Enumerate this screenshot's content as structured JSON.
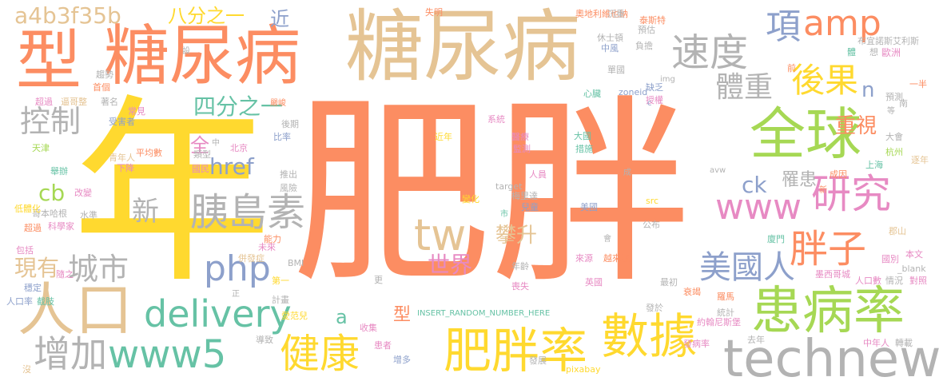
{
  "colors": {
    "orange": "#fc8d62",
    "tan": "#e5c494",
    "yellow": "#ffd92f",
    "green": "#a6d854",
    "teal": "#66c2a5",
    "blue": "#8da0cb",
    "pink": "#e78ac3",
    "gray": "#b3b3b3"
  },
  "words": [
    {
      "text": "肥胖",
      "color": "orange"
    },
    {
      "text": "年",
      "color": "yellow"
    },
    {
      "text": "糖尿病",
      "color": "tan"
    },
    {
      "text": "糖尿病",
      "color": "orange"
    },
    {
      "text": "型",
      "color": "orange"
    },
    {
      "text": "全球",
      "color": "green"
    },
    {
      "text": "患病率",
      "color": "green"
    },
    {
      "text": "technews",
      "color": "gray"
    },
    {
      "text": "肥胖率",
      "color": "yellow"
    },
    {
      "text": "數據",
      "color": "yellow"
    },
    {
      "text": "人口",
      "color": "tan"
    },
    {
      "text": "www5",
      "color": "teal"
    },
    {
      "text": "delivery",
      "color": "teal"
    },
    {
      "text": "健康",
      "color": "yellow"
    },
    {
      "text": "增加",
      "color": "gray"
    },
    {
      "text": "胰島素",
      "color": "gray"
    },
    {
      "text": "www",
      "color": "pink"
    },
    {
      "text": "研究",
      "color": "pink"
    },
    {
      "text": "胖子",
      "color": "orange"
    },
    {
      "text": "美國人",
      "color": "blue"
    },
    {
      "text": "tw",
      "color": "tan"
    },
    {
      "text": "php",
      "color": "blue"
    },
    {
      "text": "城市",
      "color": "gray"
    },
    {
      "text": "速度",
      "color": "gray"
    },
    {
      "text": "amp",
      "color": "orange"
    },
    {
      "text": "項",
      "color": "blue"
    },
    {
      "text": "後果",
      "color": "yellow"
    },
    {
      "text": "體重",
      "color": "gray"
    },
    {
      "text": "控制",
      "color": "gray"
    },
    {
      "text": "a4b3f35b",
      "color": "tan"
    },
    {
      "text": "八分之一",
      "color": "yellow"
    },
    {
      "text": "四分之一",
      "color": "teal"
    },
    {
      "text": "重視",
      "color": "orange"
    },
    {
      "text": "世界",
      "color": "pink"
    },
    {
      "text": "攀升",
      "color": "tan"
    },
    {
      "text": "href",
      "color": "blue"
    },
    {
      "text": "新",
      "color": "gray"
    },
    {
      "text": "現有",
      "color": "tan"
    },
    {
      "text": "cb",
      "color": "green"
    },
    {
      "text": "ck",
      "color": "blue"
    },
    {
      "text": "罹患",
      "color": "gray"
    },
    {
      "text": "n",
      "color": "blue"
    },
    {
      "text": "全",
      "color": "pink"
    },
    {
      "text": "近",
      "color": "blue"
    },
    {
      "text": "a",
      "color": "teal"
    },
    {
      "text": "型",
      "color": "orange"
    },
    {
      "text": "INSERT_RANDOM_NUMBER_HERE",
      "color": "teal"
    },
    {
      "text": "奧地利維也納",
      "color": "orange"
    },
    {
      "text": "沉重",
      "color": "gray"
    },
    {
      "text": "布宜諾斯艾利斯",
      "color": "gray"
    },
    {
      "text": "失明",
      "color": "orange"
    },
    {
      "text": "休士頓",
      "color": "gray"
    },
    {
      "text": "中風",
      "color": "blue"
    },
    {
      "text": "歐洲",
      "color": "pink"
    },
    {
      "text": "單國",
      "color": "gray"
    },
    {
      "text": "預測",
      "color": "gray"
    },
    {
      "text": "趨勢",
      "color": "gray"
    },
    {
      "text": "首個",
      "color": "orange"
    },
    {
      "text": "超過",
      "color": "pink"
    },
    {
      "text": "逼哥整",
      "color": "tan"
    },
    {
      "text": "著名",
      "color": "gray"
    },
    {
      "text": "嚴峻",
      "color": "orange"
    },
    {
      "text": "心臟",
      "color": "teal"
    },
    {
      "text": "缺乏",
      "color": "blue"
    },
    {
      "text": "zoneid",
      "color": "blue"
    },
    {
      "text": "授權",
      "color": "pink"
    },
    {
      "text": "一半",
      "color": "orange"
    },
    {
      "text": "常見",
      "color": "pink"
    },
    {
      "text": "受害者",
      "color": "blue"
    },
    {
      "text": "天津",
      "color": "green"
    },
    {
      "text": "哥本哈根",
      "color": "gray"
    },
    {
      "text": "水準",
      "color": "gray"
    },
    {
      "text": "科學家",
      "color": "pink"
    },
    {
      "text": "超過",
      "color": "orange"
    },
    {
      "text": "低體化",
      "color": "yellow"
    },
    {
      "text": "改變",
      "color": "pink"
    },
    {
      "text": "舉辦",
      "color": "teal"
    },
    {
      "text": "青年人",
      "color": "tan"
    },
    {
      "text": "平均數",
      "color": "orange"
    },
    {
      "text": "類型",
      "color": "gray"
    },
    {
      "text": "北京",
      "color": "pink"
    },
    {
      "text": "國民",
      "color": "pink"
    },
    {
      "text": "推出",
      "color": "gray"
    },
    {
      "text": "風險",
      "color": "gray"
    },
    {
      "text": "後期",
      "color": "gray"
    },
    {
      "text": "比率",
      "color": "blue"
    },
    {
      "text": "近年",
      "color": "yellow"
    },
    {
      "text": "系統",
      "color": "pink"
    },
    {
      "text": "醫療",
      "color": "pink"
    },
    {
      "text": "監測",
      "color": "pink"
    },
    {
      "text": "大國",
      "color": "teal"
    },
    {
      "text": "措施",
      "color": "teal"
    },
    {
      "text": "大會",
      "color": "gray"
    },
    {
      "text": "杭州",
      "color": "green"
    },
    {
      "text": "上海",
      "color": "teal"
    },
    {
      "text": "成因",
      "color": "orange"
    },
    {
      "text": "target",
      "color": "gray"
    },
    {
      "text": "人員",
      "color": "pink"
    },
    {
      "text": "梅里達",
      "color": "gray"
    },
    {
      "text": "兒童",
      "color": "blue"
    },
    {
      "text": "變化",
      "color": "yellow"
    },
    {
      "text": "美國",
      "color": "blue"
    },
    {
      "text": "公布",
      "color": "gray"
    },
    {
      "text": "src",
      "color": "yellow"
    },
    {
      "text": "廈門",
      "color": "teal"
    },
    {
      "text": "郡山",
      "color": "tan"
    },
    {
      "text": "包括",
      "color": "pink"
    },
    {
      "text": "穩定",
      "color": "blue"
    },
    {
      "text": "人口率",
      "color": "blue"
    },
    {
      "text": "截肢",
      "color": "teal"
    },
    {
      "text": "隨之",
      "color": "pink"
    },
    {
      "text": "第一",
      "color": "yellow"
    },
    {
      "text": "更",
      "color": "gray"
    },
    {
      "text": "喪失",
      "color": "pink"
    },
    {
      "text": "年齡",
      "color": "gray"
    },
    {
      "text": "來源",
      "color": "pink"
    },
    {
      "text": "越來越",
      "color": "orange"
    },
    {
      "text": "墨西哥城",
      "color": "pink"
    },
    {
      "text": "情況",
      "color": "gray"
    },
    {
      "text": "對照",
      "color": "pink"
    },
    {
      "text": "國別",
      "color": "pink"
    },
    {
      "text": "本文",
      "color": "pink"
    },
    {
      "text": "_blank",
      "color": "gray"
    },
    {
      "text": "人口數",
      "color": "pink"
    },
    {
      "text": "BMI",
      "color": "gray"
    },
    {
      "text": "併發症",
      "color": "tan"
    },
    {
      "text": "未來",
      "color": "pink"
    },
    {
      "text": "能力",
      "color": "orange"
    },
    {
      "text": "計畫",
      "color": "gray"
    },
    {
      "text": "英國",
      "color": "pink"
    },
    {
      "text": "最初",
      "color": "gray"
    },
    {
      "text": "發於",
      "color": "gray"
    },
    {
      "text": "羅馬",
      "color": "orange"
    },
    {
      "text": "衰竭",
      "color": "orange"
    },
    {
      "text": "統計",
      "color": "gray"
    },
    {
      "text": "約翰尼斯堡",
      "color": "pink"
    },
    {
      "text": "去年",
      "color": "gray"
    },
    {
      "text": "發病率",
      "color": "pink"
    },
    {
      "text": "中年人",
      "color": "pink"
    },
    {
      "text": "轉載",
      "color": "gray"
    },
    {
      "text": "愛范兒",
      "color": "yellow"
    },
    {
      "text": "收集",
      "color": "pink"
    },
    {
      "text": "導致",
      "color": "gray"
    },
    {
      "text": "患者",
      "color": "pink"
    },
    {
      "text": "增多",
      "color": "blue"
    },
    {
      "text": "發展",
      "color": "gray"
    },
    {
      "text": "pixabay",
      "color": "yellow"
    },
    {
      "text": "沒",
      "color": "tan"
    },
    {
      "text": "img",
      "color": "gray"
    },
    {
      "text": "avw",
      "color": "gray"
    },
    {
      "text": "市",
      "color": "teal"
    },
    {
      "text": "想",
      "color": "gray"
    },
    {
      "text": "泰斯特",
      "color": "orange"
    },
    {
      "text": "預估",
      "color": "gray"
    },
    {
      "text": "負擔",
      "color": "gray"
    },
    {
      "text": "體",
      "color": "teal"
    },
    {
      "text": "逐年",
      "color": "tan"
    },
    {
      "text": "下降",
      "color": "pink"
    },
    {
      "text": "南",
      "color": "gray"
    },
    {
      "text": "前",
      "color": "orange"
    },
    {
      "text": "c",
      "color": "blue"
    },
    {
      "text": "中",
      "color": "gray"
    },
    {
      "text": "等",
      "color": "gray"
    },
    {
      "text": "設",
      "color": "gray"
    },
    {
      "text": "正",
      "color": "gray"
    },
    {
      "text": "會",
      "color": "gray"
    },
    {
      "text": "成",
      "color": "gray"
    },
    {
      "text": "新",
      "color": "orange"
    }
  ]
}
